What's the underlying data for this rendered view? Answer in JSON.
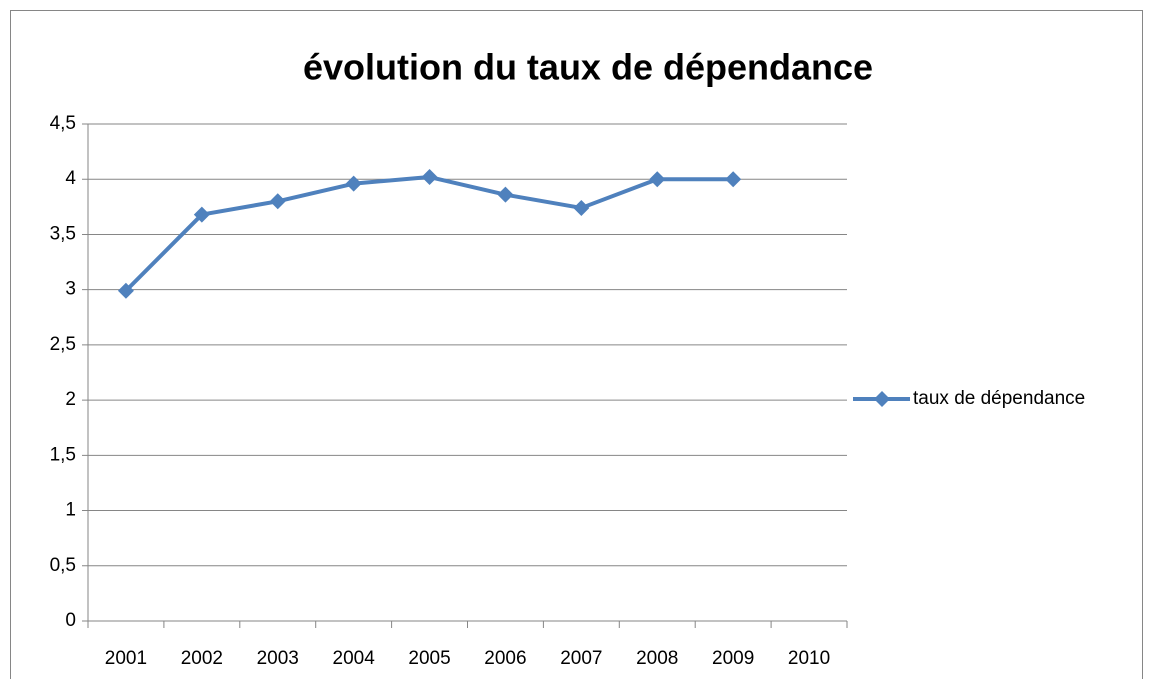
{
  "chart_data": {
    "type": "line",
    "title": "évolution du taux de dépendance",
    "categories": [
      "2001",
      "2002",
      "2003",
      "2004",
      "2005",
      "2006",
      "2007",
      "2008",
      "2009",
      "2010"
    ],
    "series": [
      {
        "name": "taux de dépendance",
        "color": "#4f81bd",
        "values": [
          2.99,
          3.68,
          3.8,
          3.96,
          4.02,
          3.86,
          3.74,
          4.0,
          4.0,
          null
        ]
      }
    ],
    "ylim": [
      0,
      4.5
    ],
    "yticks": [
      0,
      {
        "value": 0.5,
        "label": "0,5"
      },
      1,
      {
        "value": 1.5,
        "label": "1,5"
      },
      2,
      {
        "value": 2.5,
        "label": "2,5"
      },
      3,
      {
        "value": 3.5,
        "label": "3,5"
      },
      4,
      {
        "value": 4.5,
        "label": "4,5"
      }
    ],
    "grid": true,
    "legend": "right"
  }
}
